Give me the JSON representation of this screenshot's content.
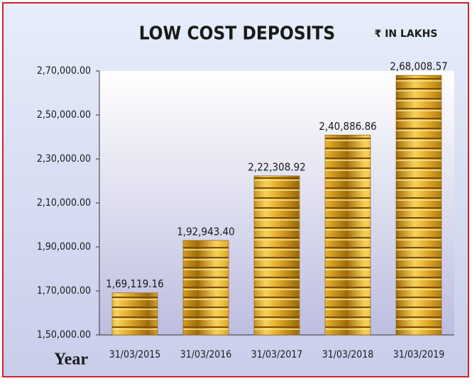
{
  "chart_data": {
    "type": "bar",
    "title": "LOW COST DEPOSITS",
    "subtitle": "₹ IN LAKHS",
    "x_label": "Year",
    "categories": [
      "31/03/2015",
      "31/03/2016",
      "31/03/2017",
      "31/03/2018",
      "31/03/2019"
    ],
    "values": [
      169119.16,
      192943.4,
      222308.92,
      240886.86,
      268008.57
    ],
    "value_labels": [
      "1,69,119.16",
      "1,92,943.40",
      "2,22,308.92",
      "2,40,886.86",
      "2,68,008.57"
    ],
    "color": "#d9a520",
    "ylim": [
      150000,
      270000
    ],
    "yticks": [
      {
        "value": 150000,
        "label": "1,50,000.00"
      },
      {
        "value": 170000,
        "label": "1,70,000.00"
      },
      {
        "value": 190000,
        "label": "1,90,000.00"
      },
      {
        "value": 210000,
        "label": "2,10,000.00"
      },
      {
        "value": 230000,
        "label": "2,30,000.00"
      },
      {
        "value": 250000,
        "label": "2,50,000.00"
      },
      {
        "value": 270000,
        "label": "2,70,000.00"
      }
    ],
    "grid": false
  }
}
